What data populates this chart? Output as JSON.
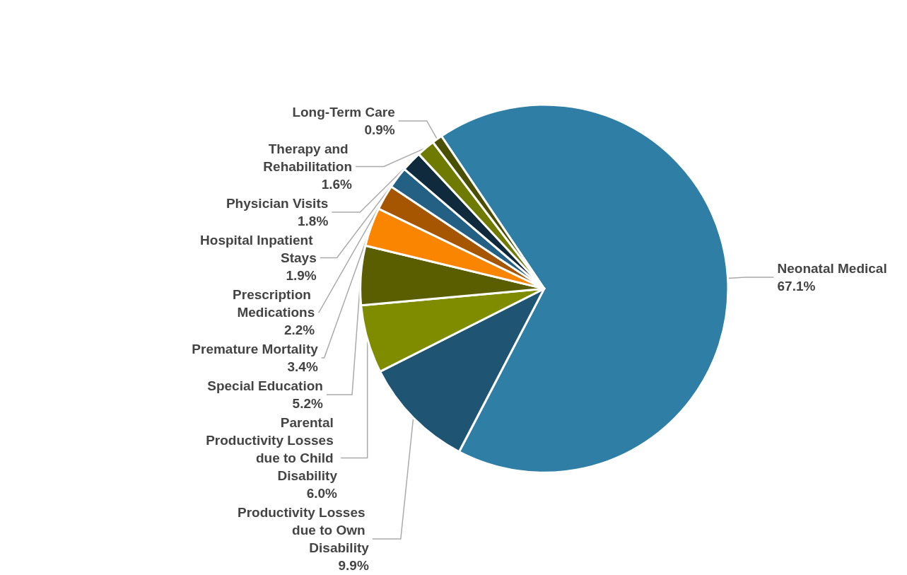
{
  "chart_data": {
    "type": "pie",
    "categories": [
      "Neonatal Medical",
      "Productivity Losses due to Own Disability",
      "Parental Productivity Losses due to Child Disability",
      "Special Education",
      "Premature Mortality",
      "Prescription Medications",
      "Hospital Inpatient Stays",
      "Physician Visits",
      "Therapy and Rehabilitation",
      "Long-Term Care"
    ],
    "values": [
      67.1,
      9.9,
      6.0,
      5.2,
      3.4,
      2.2,
      1.9,
      1.8,
      1.6,
      0.9
    ],
    "value_labels": [
      "67.1%",
      "9.9%",
      "6.0%",
      "5.2%",
      "3.4%",
      "2.2%",
      "1.9%",
      "1.8%",
      "1.6%",
      "0.9%"
    ],
    "colors": [
      "#2e7ea6",
      "#1f5572",
      "#7f8c00",
      "#5a5e00",
      "#f98500",
      "#a65600",
      "#236084",
      "#0f2a3c",
      "#6e7a00",
      "#4a5000"
    ],
    "legend": false
  }
}
